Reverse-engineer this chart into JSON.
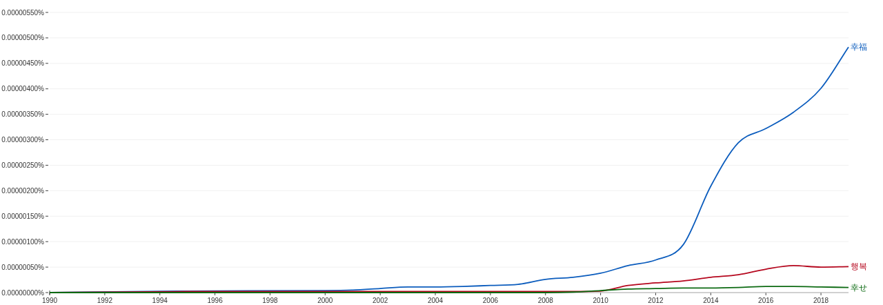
{
  "chart_data": {
    "type": "line",
    "x": [
      1990,
      1995,
      2000,
      2001,
      2002,
      2003,
      2004,
      2005,
      2006,
      2007,
      2008,
      2009,
      2010,
      2011,
      2012,
      2013,
      2014,
      2015,
      2016,
      2017,
      2018,
      2019
    ],
    "series": [
      {
        "name": "幸福",
        "color": "#0b5cbd",
        "values": [
          0,
          3e-08,
          4e-08,
          5e-08,
          8e-08,
          1.1e-07,
          1.1e-07,
          1.2e-07,
          1.4e-07,
          1.6e-07,
          2.6e-07,
          3e-07,
          3.8e-07,
          5.3e-07,
          6.4e-07,
          9.4e-07,
          2.09e-06,
          2.94e-06,
          3.22e-06,
          3.54e-06,
          4.01e-06,
          4.82e-06
        ]
      },
      {
        "name": "행복",
        "color": "#b5061d",
        "values": [
          0,
          2e-08,
          2e-08,
          2e-08,
          2e-08,
          2e-08,
          2e-08,
          2e-08,
          2e-08,
          2e-08,
          2e-08,
          2e-08,
          3e-08,
          1.4e-07,
          1.9e-07,
          2.3e-07,
          3e-07,
          3.5e-07,
          4.6e-07,
          5.3e-07,
          5e-07,
          5.1e-07
        ]
      },
      {
        "name": "幸せ",
        "color": "#0c6a12",
        "values": [
          0,
          0,
          0,
          0,
          0,
          0,
          0,
          0,
          0,
          0,
          0,
          1e-08,
          4e-08,
          7e-08,
          8e-08,
          9e-08,
          9e-08,
          1e-07,
          1.2e-07,
          1.2e-07,
          1.1e-07,
          1e-07
        ]
      }
    ],
    "xlim": [
      1990,
      2019
    ],
    "xticks": [
      1990,
      1992,
      1994,
      1996,
      1998,
      2000,
      2002,
      2004,
      2006,
      2008,
      2010,
      2012,
      2014,
      2016,
      2018
    ],
    "ylim": [
      0,
      5.5e-06
    ],
    "yticks": [
      {
        "value": 0,
        "label": "0.00000000%"
      },
      {
        "value": 5e-07,
        "label": "0.00000050%"
      },
      {
        "value": 1e-06,
        "label": "0.00000100%"
      },
      {
        "value": 1.5e-06,
        "label": "0.00000150%"
      },
      {
        "value": 2e-06,
        "label": "0.00000200%"
      },
      {
        "value": 2.5e-06,
        "label": "0.00000250%"
      },
      {
        "value": 3e-06,
        "label": "0.00000300%"
      },
      {
        "value": 3.5e-06,
        "label": "0.00000350%"
      },
      {
        "value": 4e-06,
        "label": "0.00000400%"
      },
      {
        "value": 4.5e-06,
        "label": "0.00000450%"
      },
      {
        "value": 5e-06,
        "label": "0.00000500%"
      },
      {
        "value": 5.5e-06,
        "label": "0.00000550%"
      }
    ],
    "grid": "y",
    "marker": "none",
    "line_style": "solid"
  }
}
